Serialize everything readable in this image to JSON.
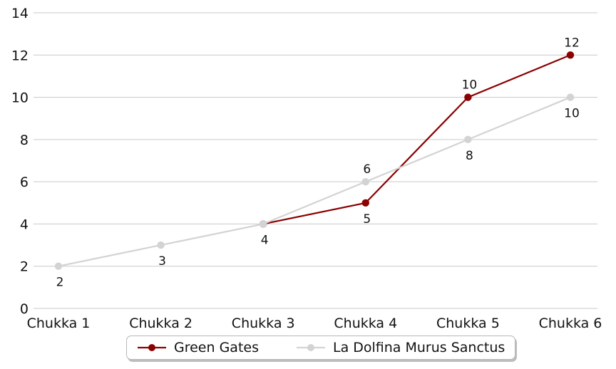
{
  "chart_data": {
    "type": "line",
    "categories": [
      "Chukka 1",
      "Chukka 2",
      "Chukka 3",
      "Chukka 4",
      "Chukka 5",
      "Chukka 6"
    ],
    "ylim": [
      0,
      14
    ],
    "yticks": [
      0,
      2,
      4,
      6,
      8,
      10,
      12,
      14
    ],
    "grid": "horizontal-only",
    "legend_position": "bottom-center",
    "series": [
      {
        "name": "Green Gates",
        "color": "#8B0000",
        "values": [
          null,
          null,
          4,
          5,
          10,
          12
        ],
        "data_labels": [
          null,
          null,
          null,
          "5",
          "10",
          "12"
        ],
        "label_positions": [
          null,
          null,
          null,
          "below",
          "above",
          "above"
        ]
      },
      {
        "name": "La Dolfina Murus Sanctus",
        "color": "#D3D3D3",
        "values": [
          2,
          3,
          4,
          6,
          8,
          10
        ],
        "data_labels": [
          "2",
          "3",
          "4",
          "6",
          "8",
          "10"
        ],
        "label_positions": [
          "below",
          "below",
          "below",
          "above",
          "below",
          "below"
        ]
      }
    ]
  },
  "legend": {
    "items": [
      {
        "label": "Green Gates",
        "color": "#8B0000"
      },
      {
        "label": "La Dolfina Murus Sanctus",
        "color": "#D3D3D3"
      }
    ]
  },
  "colors": {
    "background": "#FFFFFF",
    "gridline": "#C9C9C9",
    "tick_text": "#111111"
  }
}
